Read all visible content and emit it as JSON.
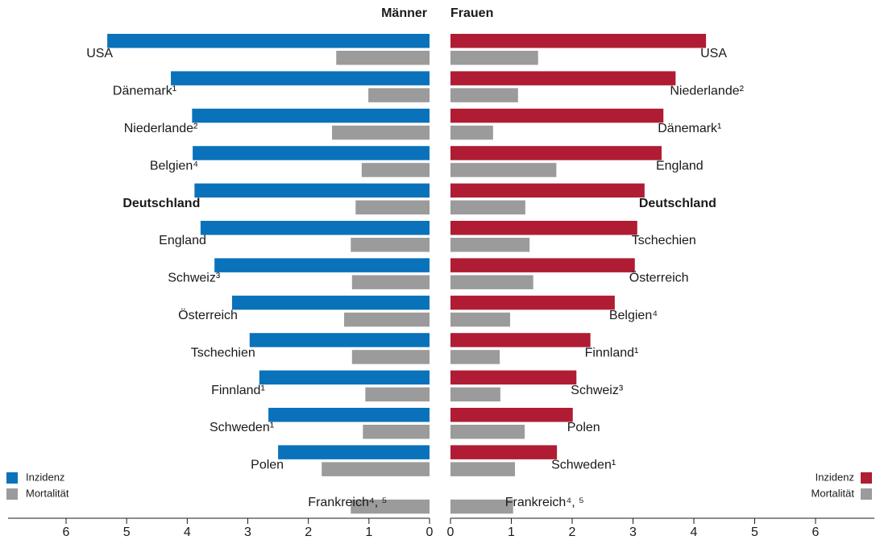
{
  "chart_data": [
    {
      "type": "bar",
      "orientation": "horizontal",
      "title": "Männer",
      "x_reversed": true,
      "categories": [
        "USA",
        "Dänemark¹",
        "Niederlande²",
        "Belgien⁴",
        "Deutschland",
        "England",
        "Schweiz³",
        "Österreich",
        "Tschechien",
        "Finnland¹",
        "Schweden¹",
        "Polen",
        "Frankreich⁴, ⁵"
      ],
      "emphasis": "Deutschland",
      "series": [
        {
          "name": "Inzidenz",
          "color": "#0a72ba",
          "values": [
            5.32,
            4.27,
            3.92,
            3.91,
            3.88,
            3.78,
            3.55,
            3.26,
            2.97,
            2.81,
            2.66,
            2.5,
            null
          ]
        },
        {
          "name": "Mortalität",
          "color": "#9b9b9b",
          "values": [
            1.54,
            1.01,
            1.61,
            1.12,
            1.22,
            1.3,
            1.28,
            1.41,
            1.28,
            1.06,
            1.1,
            1.78,
            1.3
          ]
        }
      ],
      "xlim": [
        0,
        6
      ],
      "xticks": [
        0,
        1,
        2,
        3,
        4,
        5,
        6
      ],
      "legend": "lower left"
    },
    {
      "type": "bar",
      "orientation": "horizontal",
      "title": "Frauen",
      "x_reversed": false,
      "categories": [
        "USA",
        "Niederlande²",
        "Dänemark¹",
        "England",
        "Deutschland",
        "Tschechien",
        "Österreich",
        "Belgien⁴",
        "Finnland¹",
        "Schweiz³",
        "Polen",
        "Schweden¹",
        "Frankreich⁴, ⁵"
      ],
      "emphasis": "Deutschland",
      "series": [
        {
          "name": "Inzidenz",
          "color": "#b01c33",
          "values": [
            4.2,
            3.7,
            3.5,
            3.47,
            3.19,
            3.07,
            3.03,
            2.7,
            2.3,
            2.07,
            2.01,
            1.75,
            null
          ]
        },
        {
          "name": "Mortalität",
          "color": "#9b9b9b",
          "values": [
            1.44,
            1.11,
            0.7,
            1.74,
            1.23,
            1.3,
            1.36,
            0.98,
            0.81,
            0.82,
            1.22,
            1.06,
            1.03
          ]
        }
      ],
      "xlim": [
        0,
        6
      ],
      "xticks": [
        0,
        1,
        2,
        3,
        4,
        5,
        6
      ],
      "legend": "lower right"
    }
  ]
}
